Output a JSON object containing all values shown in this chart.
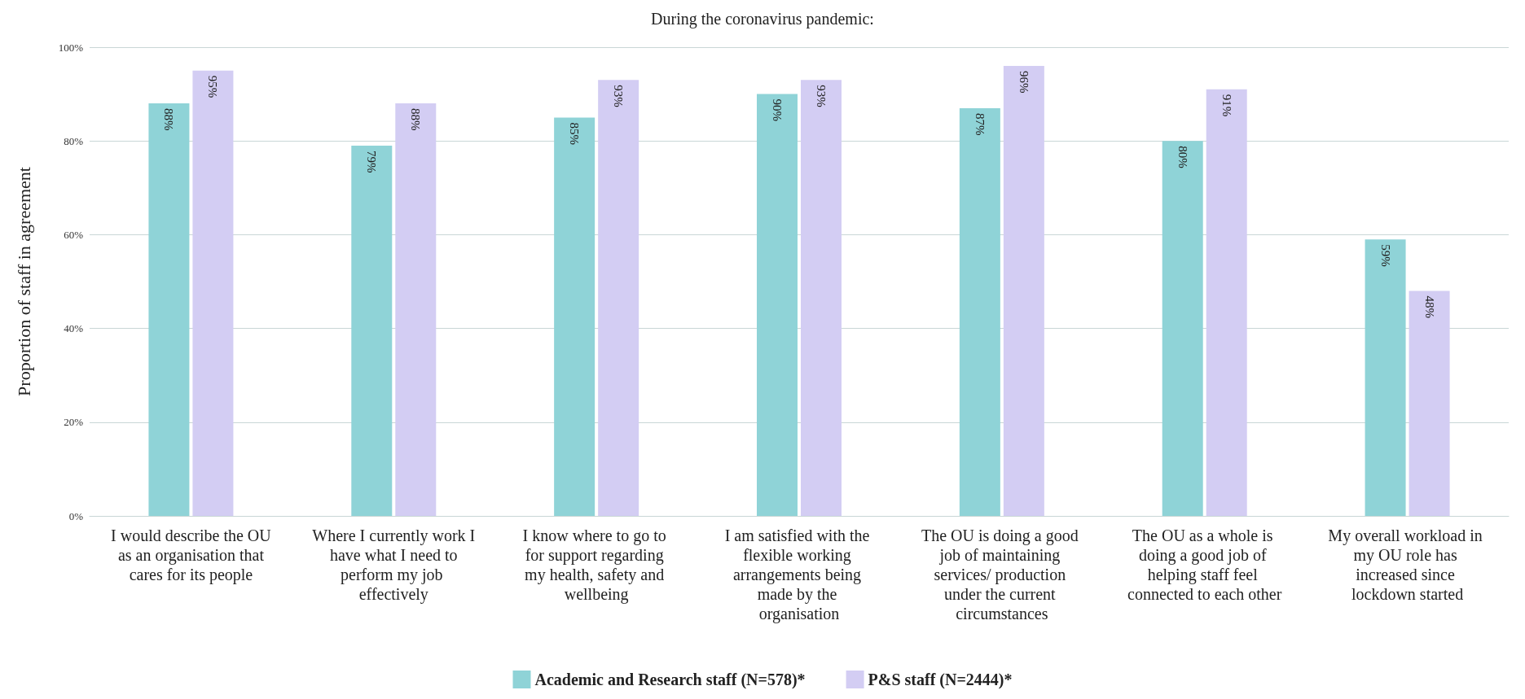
{
  "chart_data": {
    "type": "bar",
    "title": "During the coronavirus pandemic:",
    "ylabel": "Proportion of staff in agreement",
    "categories": [
      "I would describe the OU as an organisation that cares for its people",
      "Where I currently work I have what I need to perform my job effectively",
      "I know where to go to for support regarding my health, safety and wellbeing",
      "I am satisfied with the flexible working arrangements being made by the organisation",
      "The OU is doing a good job of maintaining services/ production under the current circumstances",
      "The OU as a whole is doing a good job of helping staff feel connected to each other",
      "My overall workload in my OU role has increased since lockdown started"
    ],
    "series": [
      {
        "name": "Academic and Research staff (N=578)*",
        "color": "#8fd3d7",
        "values": [
          88,
          79,
          85,
          90,
          87,
          80,
          59
        ],
        "value_labels": [
          "88%",
          "79%",
          "85%",
          "90%",
          "87%",
          "80%",
          "59%"
        ]
      },
      {
        "name": "P&S staff (N=2444)*",
        "color": "#d3cdf3",
        "values": [
          95,
          88,
          93,
          93,
          96,
          91,
          48
        ],
        "value_labels": [
          "95%",
          "88%",
          "93%",
          "93%",
          "96%",
          "91%",
          "48%"
        ]
      }
    ],
    "ylim": [
      0,
      100
    ],
    "yticks": [
      {
        "value": 0,
        "label": "0%"
      },
      {
        "value": 20,
        "label": "20%"
      },
      {
        "value": 40,
        "label": "40%"
      },
      {
        "value": 60,
        "label": "60%"
      },
      {
        "value": 80,
        "label": "80%"
      },
      {
        "value": 100,
        "label": "100%"
      }
    ],
    "grid": "y",
    "legend": "bottom"
  }
}
